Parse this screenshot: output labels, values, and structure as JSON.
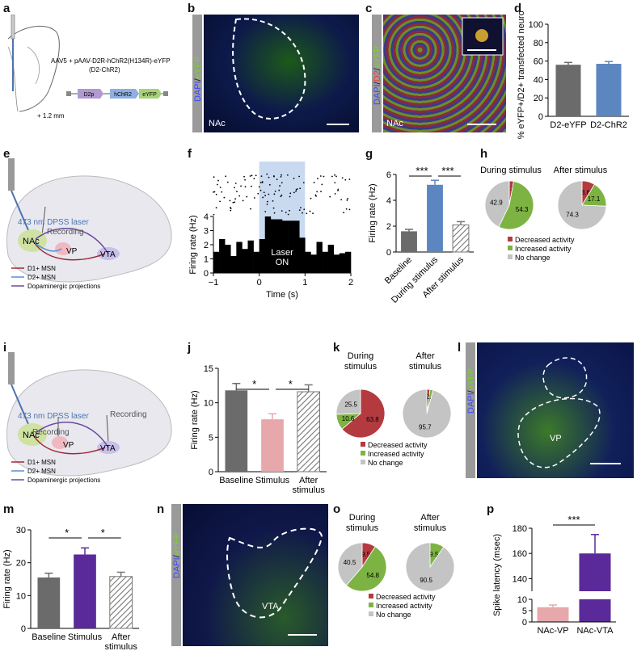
{
  "labels": {
    "a": "a",
    "b": "b",
    "c": "c",
    "d": "d",
    "e": "e",
    "f": "f",
    "g": "g",
    "h": "h",
    "i": "i",
    "j": "j",
    "k": "k",
    "l": "l",
    "m": "m",
    "n": "n",
    "o": "o",
    "p": "p"
  },
  "panel_a": {
    "construct": "AAV5 + pAAV-D2R-hChR2(H134R)-eYFP",
    "construct2": "(D2-ChR2)",
    "d2p": "D2p",
    "hchr2": "hChR2",
    "eyfp": "eYFP",
    "coord": "+ 1.2 mm"
  },
  "panel_b": {
    "stain1": "DAPI",
    "stain2": "eYFP",
    "region": "NAc"
  },
  "panel_c": {
    "stain1": "DAPI",
    "stain2": "D2",
    "stain3": "eYFP",
    "region": "NAc"
  },
  "panel_e": {
    "laser": "473 nm DPSS laser",
    "recording": "Recording",
    "nac": "NAc",
    "vp": "VP",
    "vta": "VTA",
    "legend": [
      "D1+ MSN",
      "D2+ MSN",
      "Dopaminergic projections"
    ]
  },
  "panel_i": {
    "laser": "473 nm DPSS laser",
    "recording1": "Recording",
    "recording2": "Recording",
    "nac": "NAc",
    "vp": "VP",
    "vta": "VTA",
    "legend": [
      "D1+ MSN",
      "D2+ MSN",
      "Dopaminergic projections"
    ]
  },
  "panel_f_text": {
    "laser": "Laser",
    "on": "ON"
  },
  "panel_l": {
    "stain1": "DAPI",
    "stain2": "eYFP",
    "region": "VP"
  },
  "panel_n": {
    "stain1": "DAPI",
    "stain2": "eYFP",
    "region": "VTA"
  },
  "colors": {
    "gray_bar": "#6b6b6b",
    "blue_bar": "#5b86c0",
    "pink_bar": "#e7a8ab",
    "purple_bar": "#5b2a9a",
    "pie_red": "#b33a3f",
    "pie_green": "#7cb342",
    "pie_gray": "#c4c4c4",
    "laser_shade": "#c9daf0"
  },
  "chart_data": [
    {
      "id": "d",
      "type": "bar",
      "ylabel": "% eYFP+/D2+ transfected neurons",
      "categories": [
        "D2-eYFP",
        "D2-ChR2"
      ],
      "values": [
        56,
        57
      ],
      "errors": [
        2.5,
        2.5
      ],
      "ylim": [
        0,
        100
      ],
      "yticks": [
        0,
        20,
        40,
        60,
        80,
        100
      ]
    },
    {
      "id": "f",
      "type": "bar",
      "xlabel": "Time (s)",
      "ylabel": "Firing rate (Hz)",
      "xlim": [
        -1,
        2
      ],
      "ylim": [
        0,
        4
      ],
      "xticks": [
        -1,
        0,
        1,
        2
      ],
      "yticks": [
        0,
        1,
        2,
        3,
        4
      ],
      "bins": [
        -1,
        -0.875,
        -0.75,
        -0.625,
        -0.5,
        -0.375,
        -0.25,
        -0.125,
        0,
        0.125,
        0.25,
        0.375,
        0.5,
        0.625,
        0.75,
        0.875,
        1,
        1.125,
        1.25,
        1.375,
        1.5,
        1.625,
        1.75,
        1.875
      ],
      "values": [
        1.5,
        2.4,
        2.0,
        1.2,
        2.2,
        1.7,
        2.3,
        1.5,
        2.4,
        4.0,
        3.8,
        3.8,
        3.7,
        3.7,
        3.7,
        2.5,
        1.5,
        1.3,
        2.2,
        1.5,
        2.0,
        1.3,
        1.4,
        1.5
      ],
      "laser_window": [
        0,
        1
      ]
    },
    {
      "id": "g",
      "type": "bar",
      "ylabel": "Firing rate (Hz)",
      "categories": [
        "Baseline",
        "During stimulus",
        "After stimulus"
      ],
      "values": [
        1.6,
        5.2,
        2.1
      ],
      "errors": [
        0.15,
        0.35,
        0.25
      ],
      "ylim": [
        0,
        6
      ],
      "yticks": [
        0,
        2,
        4,
        6
      ],
      "significance": [
        {
          "pair": [
            0,
            1
          ],
          "label": "***"
        },
        {
          "pair": [
            1,
            2
          ],
          "label": "***"
        }
      ]
    },
    {
      "id": "h",
      "type": "pie",
      "charts": [
        {
          "title": "During stimulus",
          "slices": [
            2.9,
            54.3,
            42.9
          ]
        },
        {
          "title": "After stimulus",
          "slices": [
            8.6,
            17.1,
            74.3
          ]
        }
      ],
      "legend": [
        "Decreased activity",
        "Increased activity",
        "No change"
      ]
    },
    {
      "id": "j",
      "type": "bar",
      "ylabel": "Firing rate (Hz)",
      "categories": [
        "Baseline",
        "Stimulus",
        "After stimulus"
      ],
      "values": [
        11.8,
        7.6,
        11.6
      ],
      "errors": [
        1.0,
        0.8,
        1.0
      ],
      "ylim": [
        0,
        15
      ],
      "yticks": [
        0,
        5,
        10,
        15
      ],
      "significance": [
        {
          "pair": [
            0,
            1
          ],
          "label": "*"
        },
        {
          "pair": [
            1,
            2
          ],
          "label": "*"
        }
      ]
    },
    {
      "id": "k",
      "type": "pie",
      "charts": [
        {
          "title": "During stimulus",
          "slices": [
            63.8,
            10.6,
            25.5
          ]
        },
        {
          "title": "After stimulus",
          "slices": [
            2.1,
            2.1,
            95.7
          ]
        }
      ],
      "legend": [
        "Decreased activity",
        "Increased activity",
        "No change"
      ]
    },
    {
      "id": "m",
      "type": "bar",
      "ylabel": "Firing rate (Hz)",
      "categories": [
        "Baseline",
        "Stimulus",
        "After stimulus"
      ],
      "values": [
        15.5,
        22.5,
        15.8
      ],
      "errors": [
        1.3,
        2.0,
        1.3
      ],
      "ylim": [
        0,
        30
      ],
      "yticks": [
        0,
        10,
        20,
        30
      ],
      "significance": [
        {
          "pair": [
            0,
            1
          ],
          "label": "*"
        },
        {
          "pair": [
            1,
            2
          ],
          "label": "*"
        }
      ]
    },
    {
      "id": "o",
      "type": "pie",
      "charts": [
        {
          "title": "During stimulus",
          "slices": [
            9.5,
            54.8,
            40.5
          ]
        },
        {
          "title": "After stimulus",
          "slices": [
            0,
            9.5,
            90.5
          ]
        }
      ],
      "legend": [
        "Decreased activity",
        "Increased activity",
        "No change"
      ]
    },
    {
      "id": "p",
      "type": "bar",
      "ylabel": "Spike latency (msec)",
      "categories": [
        "NAc-VP",
        "NAc-VTA"
      ],
      "values": [
        6.5,
        160
      ],
      "errors": [
        1.0,
        15
      ],
      "broken_axis": {
        "lower": [
          0,
          10
        ],
        "upper": [
          130,
          180
        ]
      },
      "yticks_lower": [
        0,
        5,
        10
      ],
      "yticks_upper": [
        140,
        160,
        180
      ],
      "significance": [
        {
          "pair": [
            0,
            1
          ],
          "label": "***"
        }
      ]
    }
  ]
}
